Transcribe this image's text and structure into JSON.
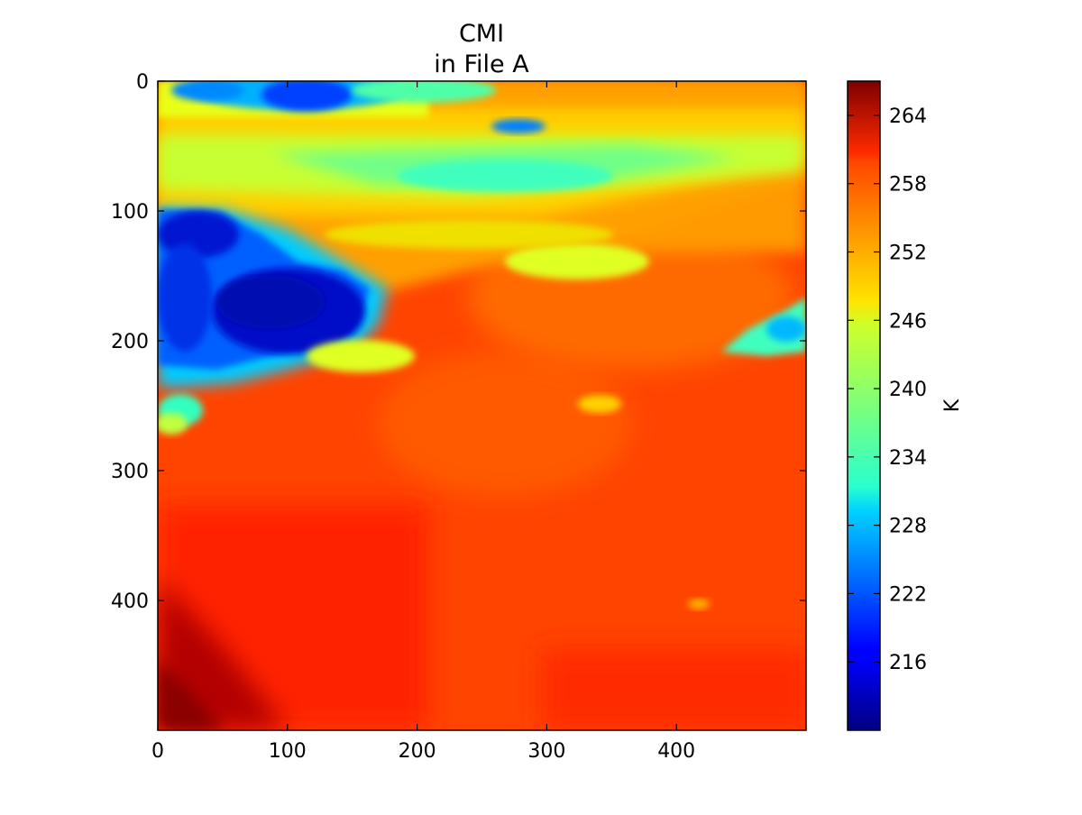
{
  "chart_data": {
    "type": "heatmap",
    "title": "CMI",
    "subtitle": "in File A",
    "xlabel": "",
    "ylabel": "",
    "xlim": [
      0,
      500
    ],
    "ylim": [
      500,
      0
    ],
    "x_ticks": [
      0,
      100,
      200,
      300,
      400
    ],
    "y_ticks": [
      0,
      100,
      200,
      300,
      400
    ],
    "y_axis_inverted": true,
    "grid": false,
    "colormap": "jet",
    "colorbar": {
      "label": "K",
      "range": [
        210,
        267
      ],
      "ticks": [
        216,
        222,
        228,
        234,
        240,
        246,
        252,
        258,
        264
      ]
    },
    "regions": [
      {
        "description_value": "clear ocean background",
        "value_K": 258
      },
      {
        "description_value": "bottom-left warm corner",
        "x": [
          0,
          90
        ],
        "y": [
          400,
          500
        ],
        "value_K": 266
      },
      {
        "description_value": "cold cloud core",
        "x": [
          0,
          150
        ],
        "y": [
          100,
          230
        ],
        "value_K": 213
      },
      {
        "description_value": "cold cloud top-center",
        "x": [
          30,
          200
        ],
        "y": [
          0,
          40
        ],
        "value_K": 222
      },
      {
        "description_value": "upper mixed cloud band",
        "x": [
          0,
          500
        ],
        "y": [
          0,
          100
        ],
        "value_K": 244
      },
      {
        "description_value": "small cold feature right edge",
        "x": [
          430,
          500
        ],
        "y": [
          170,
          210
        ],
        "value_K": 230
      }
    ]
  }
}
